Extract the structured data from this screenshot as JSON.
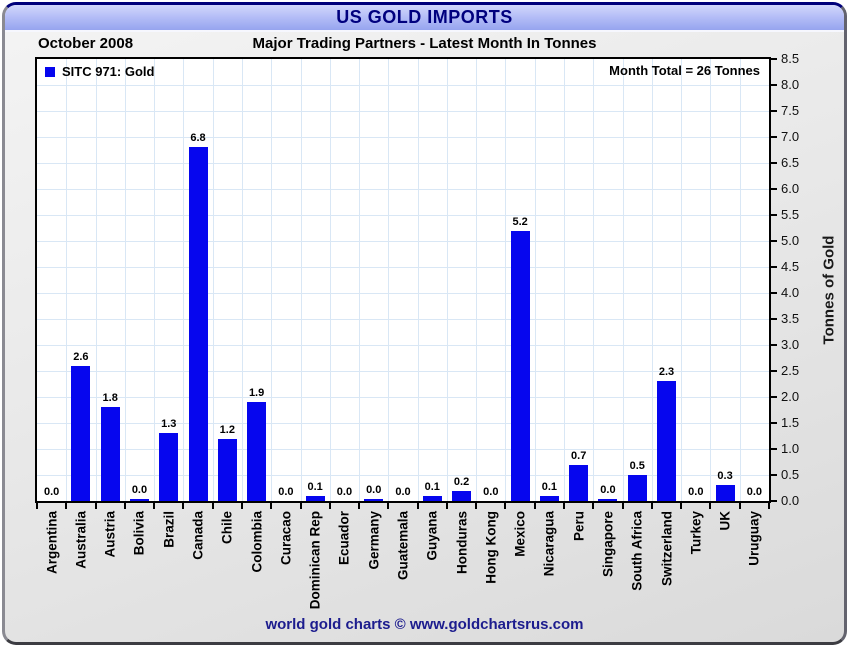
{
  "window": {
    "title": "US GOLD IMPORTS"
  },
  "header": {
    "date_label": "October 2008",
    "subtitle": "Major Trading Partners - Latest Month In Tonnes"
  },
  "legend": {
    "label": "SITC 971: Gold"
  },
  "annotations": {
    "month_total": "Month Total = 26 Tonnes"
  },
  "footer": {
    "credit": "world gold charts © www.goldchartsrus.com"
  },
  "colors": {
    "bar": "#0606ee",
    "grid": "#d9e7f5",
    "title_text": "#00007e",
    "titlebar_top": "#d2d7fb",
    "titlebar_bottom": "#96a4ef",
    "footer_text": "#1c1c8e",
    "plot_border": "#000000",
    "plot_background": "#ffffff"
  },
  "chart_data": {
    "type": "bar",
    "title": "US GOLD IMPORTS",
    "subtitle": "Major Trading Partners - Latest Month In Tonnes",
    "period": "October 2008",
    "series_name": "SITC 971: Gold",
    "ylabel": "Tonnes of Gold",
    "ylabel_side": "right",
    "ylim": [
      0,
      8.5
    ],
    "ytick_step": 0.5,
    "grid": true,
    "legend_position": "top-left",
    "categories": [
      "Argentina",
      "Australia",
      "Austria",
      "Bolivia",
      "Brazil",
      "Canada",
      "Chile",
      "Colombia",
      "Curacao",
      "Dominican Rep",
      "Ecuador",
      "Germany",
      "Guatemala",
      "Guyana",
      "Honduras",
      "Hong Kong",
      "Mexico",
      "Nicaragua",
      "Peru",
      "Singapore",
      "South Africa",
      "Switzerland",
      "Turkey",
      "UK",
      "Uruguay"
    ],
    "values": [
      0.0,
      2.6,
      1.8,
      0.0,
      1.3,
      6.8,
      1.2,
      1.9,
      0.0,
      0.1,
      0.0,
      0.0,
      0.0,
      0.1,
      0.2,
      0.0,
      5.2,
      0.1,
      0.7,
      0.0,
      0.5,
      2.3,
      0.0,
      0.3,
      0.0
    ],
    "bar_labels": [
      "0.0",
      "2.6",
      "1.8",
      "0.0",
      "1.3",
      "6.8",
      "1.2",
      "1.9",
      "0.0",
      "0.1",
      "0.0",
      "0.0",
      "0.0",
      "0.1",
      "0.2",
      "0.0",
      "5.2",
      "0.1",
      "0.7",
      "0.0",
      "0.5",
      "2.3",
      "0.0",
      "0.3",
      "0.0"
    ],
    "sliver_indices": [
      3,
      11,
      19
    ]
  }
}
